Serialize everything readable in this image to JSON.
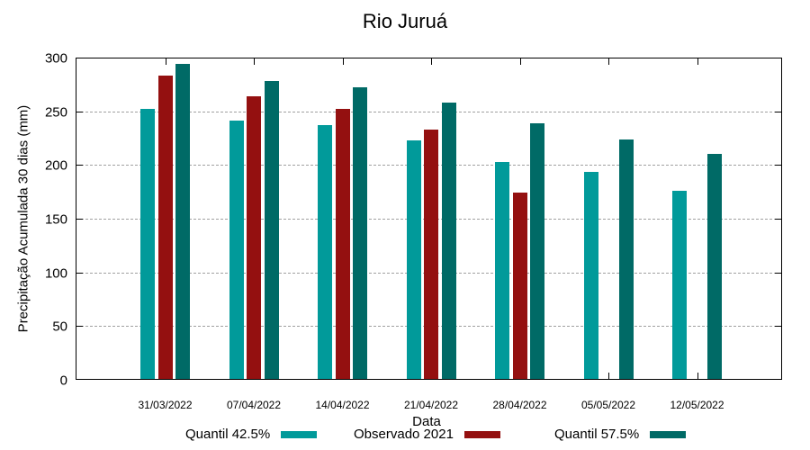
{
  "chart_data": {
    "type": "bar",
    "title": "Rio Juruá",
    "xlabel": "Data",
    "ylabel": "Precipitação Acumulada 30 dias (mm)",
    "ylim": [
      0,
      300
    ],
    "yticks": [
      0,
      50,
      100,
      150,
      200,
      250,
      300
    ],
    "grid": true,
    "legend_position": "bottom",
    "categories": [
      "31/03/2022",
      "07/04/2022",
      "14/04/2022",
      "21/04/2022",
      "28/04/2022",
      "05/05/2022",
      "12/05/2022"
    ],
    "series": [
      {
        "name": "Quantil 42.5%",
        "color": "#019a9a",
        "values": [
          252,
          241,
          237,
          223,
          203,
          194,
          176
        ]
      },
      {
        "name": "Observado 2021",
        "color": "#941010",
        "values": [
          283,
          264,
          252,
          233,
          174,
          null,
          null
        ]
      },
      {
        "name": "Quantil 57.5%",
        "color": "#006a66",
        "values": [
          294,
          278,
          272,
          258,
          239,
          224,
          210
        ]
      }
    ]
  }
}
